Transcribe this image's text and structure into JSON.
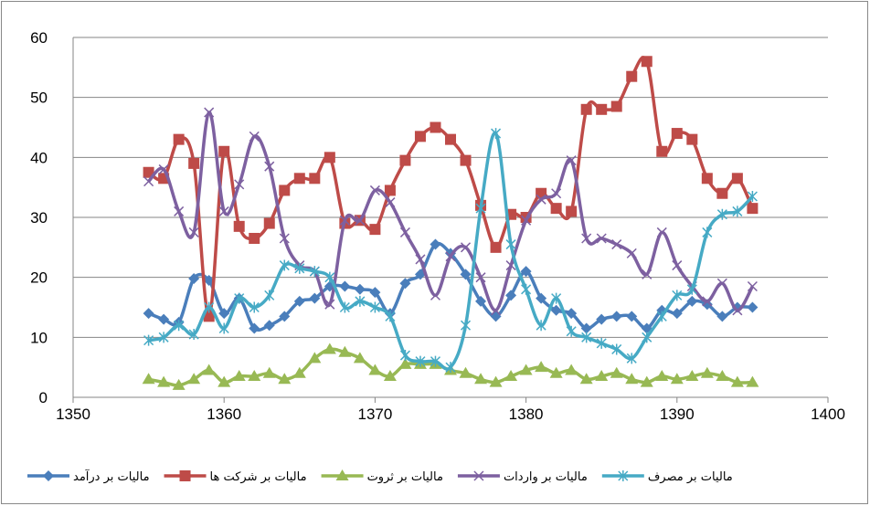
{
  "chart_data": {
    "type": "line",
    "smooth": true,
    "grid": true,
    "x": [
      1355,
      1356,
      1357,
      1358,
      1359,
      1360,
      1361,
      1362,
      1363,
      1364,
      1365,
      1366,
      1367,
      1368,
      1369,
      1370,
      1371,
      1372,
      1373,
      1374,
      1375,
      1376,
      1377,
      1378,
      1379,
      1380,
      1381,
      1382,
      1383,
      1384,
      1385,
      1386,
      1387,
      1388,
      1389,
      1390,
      1391,
      1392,
      1393,
      1394,
      1395
    ],
    "xlim": [
      1350,
      1400
    ],
    "xticks": [
      1350,
      1360,
      1370,
      1380,
      1390,
      1400
    ],
    "ylim": [
      0,
      60
    ],
    "yticks": [
      0,
      10,
      20,
      30,
      40,
      50,
      60
    ],
    "series": [
      {
        "name": "مالیات بر درآمد",
        "color": "#4a7ebb",
        "marker": "diamond",
        "values": [
          14,
          13,
          12.5,
          19.8,
          19.5,
          14,
          16.5,
          11.5,
          12,
          13.5,
          16,
          16.5,
          18.5,
          18.5,
          18,
          17.5,
          14,
          19,
          20.5,
          25.5,
          24,
          20.5,
          16,
          13.5,
          17,
          21,
          16.5,
          14.5,
          14,
          11.5,
          13,
          13.5,
          13.5,
          11.5,
          14.5,
          14,
          16,
          15.5,
          13.5,
          15,
          15
        ]
      },
      {
        "name": "مالیات بر شرکت ها",
        "color": "#be4b48",
        "marker": "square",
        "values": [
          37.5,
          36.5,
          43,
          39,
          13.5,
          41,
          28.5,
          26.5,
          29,
          34.5,
          36.5,
          36.5,
          40,
          29,
          29.5,
          28,
          34.5,
          39.5,
          43.5,
          45,
          43,
          39.5,
          32,
          25,
          30.5,
          30,
          34,
          31.5,
          31,
          48,
          48,
          48.5,
          53.5,
          56,
          41,
          44,
          43,
          36.5,
          34,
          36.5,
          31.5
        ]
      },
      {
        "name": "مالیات بر ثروت",
        "color": "#98b954",
        "marker": "triangle",
        "values": [
          3,
          2.5,
          2,
          3,
          4.5,
          2.5,
          3.5,
          3.5,
          4,
          3,
          4,
          6.5,
          8,
          7.5,
          6.5,
          4.5,
          3.5,
          5.5,
          5.5,
          5.5,
          4.5,
          4,
          3,
          2.5,
          3.5,
          4.5,
          5,
          4,
          4.5,
          3,
          3.5,
          4,
          3,
          2.5,
          3.5,
          3,
          3.5,
          4,
          3.5,
          2.5,
          2.5
        ]
      },
      {
        "name": "مالیات بر واردات",
        "color": "#7d60a0",
        "marker": "x",
        "values": [
          36,
          38,
          31,
          27.5,
          47.5,
          31,
          35.5,
          43.5,
          38.5,
          26.5,
          22,
          21,
          15.5,
          29.5,
          29.5,
          34.5,
          32.5,
          27.5,
          23,
          17,
          23.5,
          25,
          20,
          14.5,
          22,
          29.5,
          33,
          34,
          39.5,
          26.5,
          26.5,
          25.5,
          24,
          20.5,
          27.5,
          22,
          18.5,
          16,
          19,
          14.5,
          18.5
        ]
      },
      {
        "name": "مالیات بر مصرف",
        "color": "#46aac5",
        "marker": "star",
        "values": [
          9.5,
          10,
          12,
          10.5,
          15,
          11.5,
          16.5,
          15,
          17,
          22,
          21.5,
          21,
          20,
          15,
          16,
          15,
          13.5,
          7,
          6,
          6,
          5,
          12,
          31.5,
          44,
          25.5,
          18,
          12,
          16.5,
          11,
          10,
          9,
          8,
          6.5,
          10,
          13.5,
          17,
          18,
          27.5,
          30.5,
          31,
          33.5
        ]
      }
    ]
  }
}
